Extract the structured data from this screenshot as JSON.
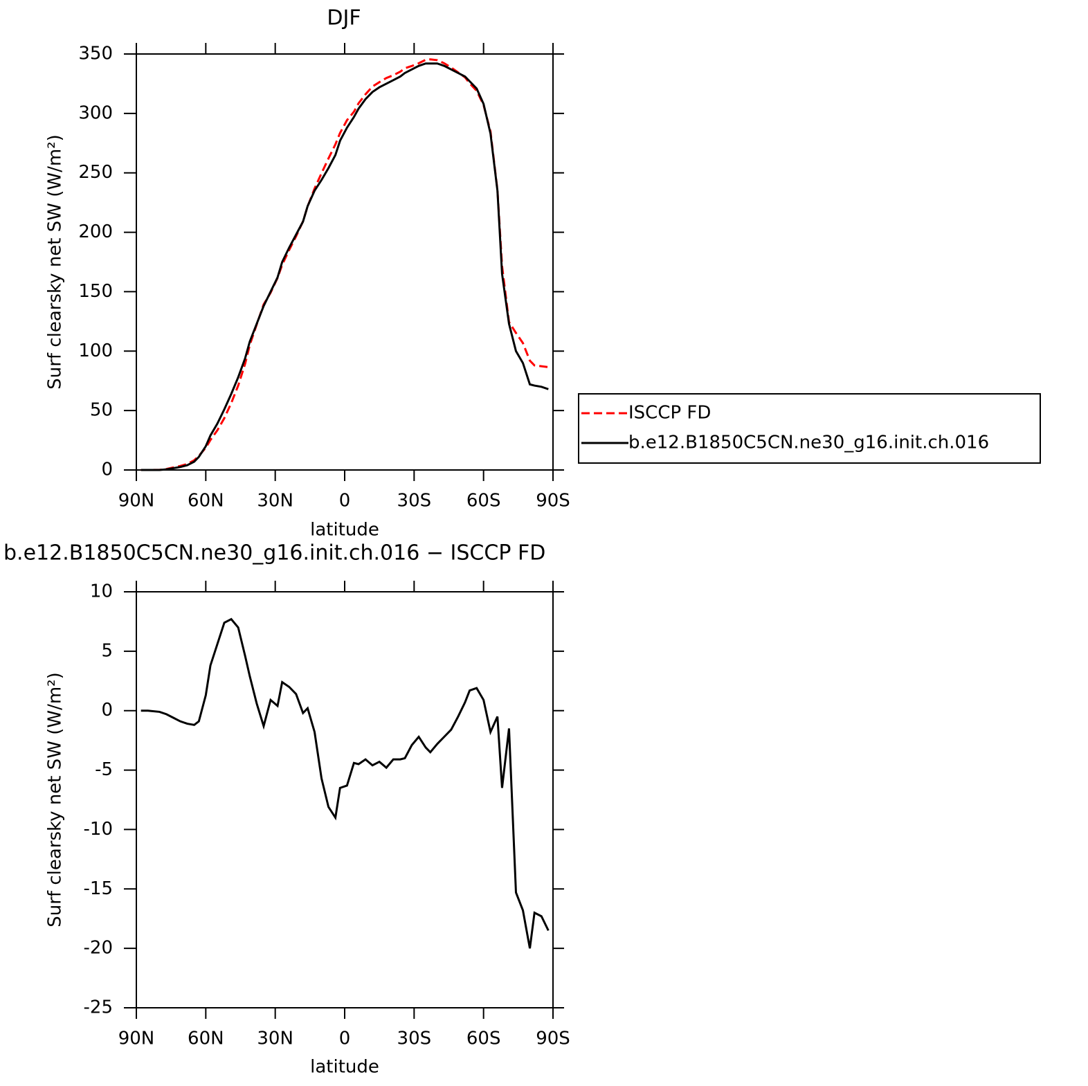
{
  "chart_data": [
    {
      "type": "line",
      "title": "DJF",
      "xlabel": "latitude",
      "ylabel": "Surf clearsky net SW (W/m²)",
      "x": [
        88,
        85,
        80,
        77,
        74,
        71,
        68,
        65,
        63,
        60,
        58,
        55,
        52,
        49,
        46,
        43,
        41,
        38,
        35,
        32,
        29,
        27,
        24,
        21,
        18,
        16,
        13,
        10,
        7,
        4,
        2,
        -1,
        -4,
        -6,
        -9,
        -12,
        -15,
        -18,
        -21,
        -24,
        -26,
        -29,
        -32,
        -35,
        -37,
        -40,
        -43,
        -46,
        -49,
        -52,
        -54,
        -57,
        -60,
        -63,
        -66,
        -68,
        -71,
        -74,
        -77,
        -80,
        -82,
        -85,
        -88
      ],
      "xlim": [
        90,
        -90
      ],
      "xticks": [
        {
          "value": 90,
          "label": "90N"
        },
        {
          "value": 60,
          "label": "60N"
        },
        {
          "value": 30,
          "label": "30N"
        },
        0,
        {
          "value": -30,
          "label": "30S"
        },
        {
          "value": -60,
          "label": "60S"
        },
        {
          "value": -90,
          "label": "90S"
        }
      ],
      "ylim": [
        0,
        350
      ],
      "yticks": [
        0,
        50,
        100,
        150,
        200,
        250,
        300,
        350
      ],
      "legend": "outside right",
      "series": [
        {
          "name": "ISCCP FD",
          "color": "#ff0000",
          "dashed": true,
          "values": [
            0,
            0,
            0.1,
            0.8,
            2.1,
            3.4,
            5.1,
            8.2,
            11.9,
            18.7,
            25.2,
            33.4,
            43.6,
            56.3,
            71,
            89.4,
            105.1,
            122.4,
            139.3,
            149.1,
            161.6,
            172.6,
            185,
            196.6,
            209.2,
            221.8,
            236.8,
            249.7,
            262.1,
            274,
            283.5,
            294.3,
            301.4,
            308.5,
            316.1,
            322.6,
            326.3,
            329.8,
            332.1,
            335.1,
            338,
            339.9,
            342.2,
            345.1,
            345.5,
            344.8,
            342.2,
            338.6,
            334.5,
            330.3,
            325.3,
            319.1,
            307.1,
            284.8,
            235.5,
            171.5,
            124.5,
            115.3,
            106.8,
            92,
            88,
            87.3,
            86.5
          ]
        },
        {
          "name": "b.e12.B1850C5CN.ne30_g16.init.ch.016",
          "color": "#000000",
          "dashed": false,
          "values": [
            0,
            0,
            0,
            0.5,
            1.5,
            2.5,
            4,
            7,
            11,
            20,
            29,
            39,
            51,
            64,
            78,
            94,
            108,
            123,
            138,
            150,
            162,
            175,
            187,
            198,
            209,
            222,
            235,
            244,
            254,
            265,
            277,
            288,
            297,
            304,
            312,
            318,
            322,
            325,
            328,
            331,
            334,
            337,
            340,
            342,
            342,
            342,
            340,
            337,
            334,
            331,
            327,
            321,
            308,
            283,
            235,
            165,
            123,
            100,
            90,
            72,
            71,
            70,
            68
          ]
        }
      ]
    },
    {
      "type": "line",
      "title": "b.e12.B1850C5CN.ne30_g16.init.ch.016 − ISCCP FD",
      "xlabel": "latitude",
      "ylabel": "Surf clearsky net SW (W/m²)",
      "x": [
        88,
        85,
        80,
        77,
        74,
        71,
        68,
        65,
        63,
        60,
        58,
        55,
        52,
        49,
        46,
        43,
        41,
        38,
        35,
        32,
        29,
        27,
        24,
        21,
        18,
        16,
        13,
        10,
        7,
        4,
        2,
        -1,
        -4,
        -6,
        -9,
        -12,
        -15,
        -18,
        -21,
        -24,
        -26,
        -29,
        -32,
        -35,
        -37,
        -40,
        -43,
        -46,
        -49,
        -52,
        -54,
        -57,
        -60,
        -63,
        -66,
        -68,
        -71,
        -74,
        -77,
        -80,
        -82,
        -85,
        -88
      ],
      "xlim": [
        90,
        -90
      ],
      "xticks": [
        {
          "value": 90,
          "label": "90N"
        },
        {
          "value": 60,
          "label": "60N"
        },
        {
          "value": 30,
          "label": "30N"
        },
        0,
        {
          "value": -30,
          "label": "30S"
        },
        {
          "value": -60,
          "label": "60S"
        },
        {
          "value": -90,
          "label": "90S"
        }
      ],
      "ylim": [
        -25,
        10
      ],
      "yticks": [
        -25,
        -20,
        -15,
        -10,
        -5,
        0,
        5,
        10
      ],
      "series": [
        {
          "color": "#000000",
          "dashed": false,
          "values": [
            0,
            0,
            -0.1,
            -0.3,
            -0.6,
            -0.9,
            -1.1,
            -1.2,
            -0.9,
            1.3,
            3.8,
            5.6,
            7.4,
            7.7,
            7.0,
            4.6,
            2.9,
            0.6,
            -1.3,
            0.9,
            0.4,
            2.4,
            2.0,
            1.4,
            -0.2,
            0.2,
            -1.8,
            -5.7,
            -8.1,
            -9.0,
            -6.5,
            -6.3,
            -4.4,
            -4.5,
            -4.1,
            -4.6,
            -4.3,
            -4.8,
            -4.1,
            -4.1,
            -4.0,
            -2.9,
            -2.2,
            -3.1,
            -3.5,
            -2.8,
            -2.2,
            -1.6,
            -0.5,
            0.7,
            1.7,
            1.9,
            0.9,
            -1.8,
            -0.5,
            -6.5,
            -1.5,
            -15.3,
            -16.8,
            -20.0,
            -17.0,
            -17.3,
            -18.5
          ]
        }
      ]
    }
  ]
}
